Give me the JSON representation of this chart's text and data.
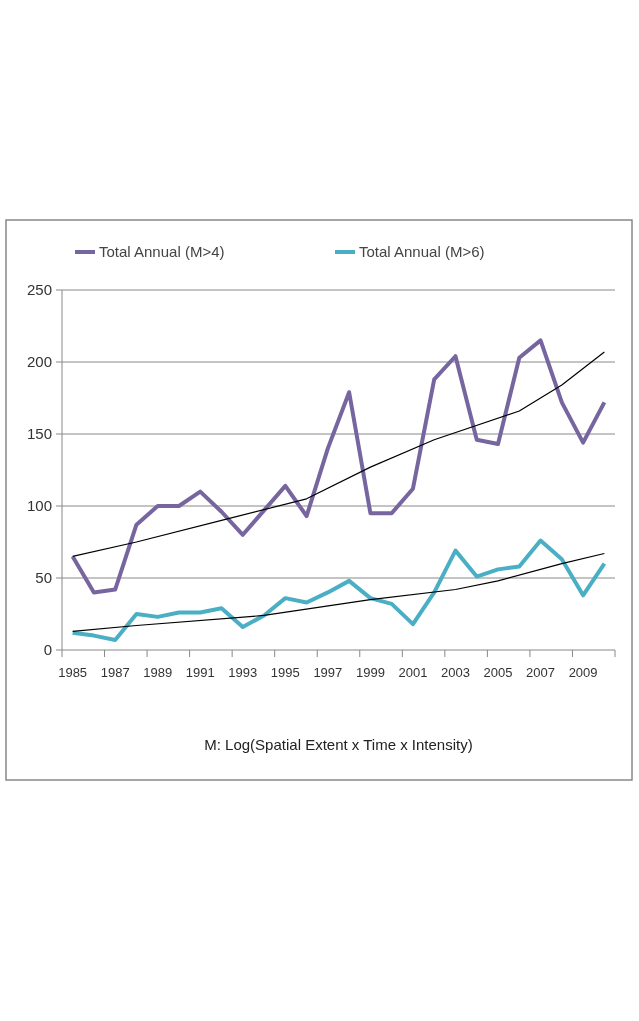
{
  "chart_data": {
    "type": "line",
    "xlabel": "M: Log(Spatial Extent x Time x Intensity)",
    "x": [
      1985,
      1986,
      1987,
      1988,
      1989,
      1990,
      1991,
      1992,
      1993,
      1994,
      1995,
      1996,
      1997,
      1998,
      1999,
      2000,
      2001,
      2002,
      2003,
      2004,
      2005,
      2006,
      2007,
      2008,
      2009,
      2010
    ],
    "xlim": [
      1984.5,
      2010.5
    ],
    "xticks": [
      {
        "value": 1984.5,
        "label": null
      },
      1985,
      {
        "value": 1986.5,
        "label": null
      },
      1987,
      {
        "value": 1988.5,
        "label": null
      },
      1989,
      {
        "value": 1990.5,
        "label": null
      },
      1991,
      {
        "value": 1992.5,
        "label": null
      },
      1993,
      {
        "value": 1994.5,
        "label": null
      },
      1995,
      {
        "value": 1996.5,
        "label": null
      },
      1997,
      {
        "value": 1998.5,
        "label": null
      },
      1999,
      {
        "value": 2000.5,
        "label": null
      },
      2001,
      {
        "value": 2002.5,
        "label": null
      },
      2003,
      {
        "value": 2004.5,
        "label": null
      },
      2005,
      {
        "value": 2006.5,
        "label": null
      },
      2007,
      {
        "value": 2008.5,
        "label": null
      },
      2009,
      {
        "value": 2010.5,
        "label": null
      }
    ],
    "ylim": [
      0,
      250
    ],
    "yticks": [
      0,
      50,
      100,
      150,
      200,
      250
    ],
    "grid": "y",
    "legend": "top",
    "marker": "none",
    "line_style": "solid",
    "series": [
      {
        "name": "Total Annual (M>4)",
        "color": "#77659f",
        "values": [
          65,
          40,
          42,
          87,
          100,
          100,
          110,
          96,
          80,
          97,
          114,
          93,
          140,
          179,
          95,
          95,
          112,
          188,
          204,
          146,
          143,
          203,
          215,
          172,
          144,
          172
        ]
      },
      {
        "name": "Total Annual (M>6)",
        "color": "#4aafc4",
        "values": [
          12,
          10,
          7,
          25,
          23,
          26,
          26,
          29,
          16,
          24,
          36,
          33,
          40,
          48,
          36,
          32,
          18,
          40,
          69,
          51,
          56,
          58,
          76,
          63,
          38,
          60
        ]
      },
      {
        "type": "line",
        "color": "#000000",
        "x": [
          1985,
          1988,
          1992,
          1996,
          1999,
          2002,
          2006,
          2008,
          2010
        ],
        "values": [
          65,
          75,
          90,
          105,
          127,
          146,
          166,
          184,
          207
        ]
      },
      {
        "type": "line",
        "color": "#000000",
        "x": [
          1985,
          1988,
          1994,
          1999,
          2003,
          2005,
          2008,
          2010
        ],
        "values": [
          13,
          17,
          24,
          35,
          42,
          48,
          60,
          67
        ]
      }
    ]
  }
}
